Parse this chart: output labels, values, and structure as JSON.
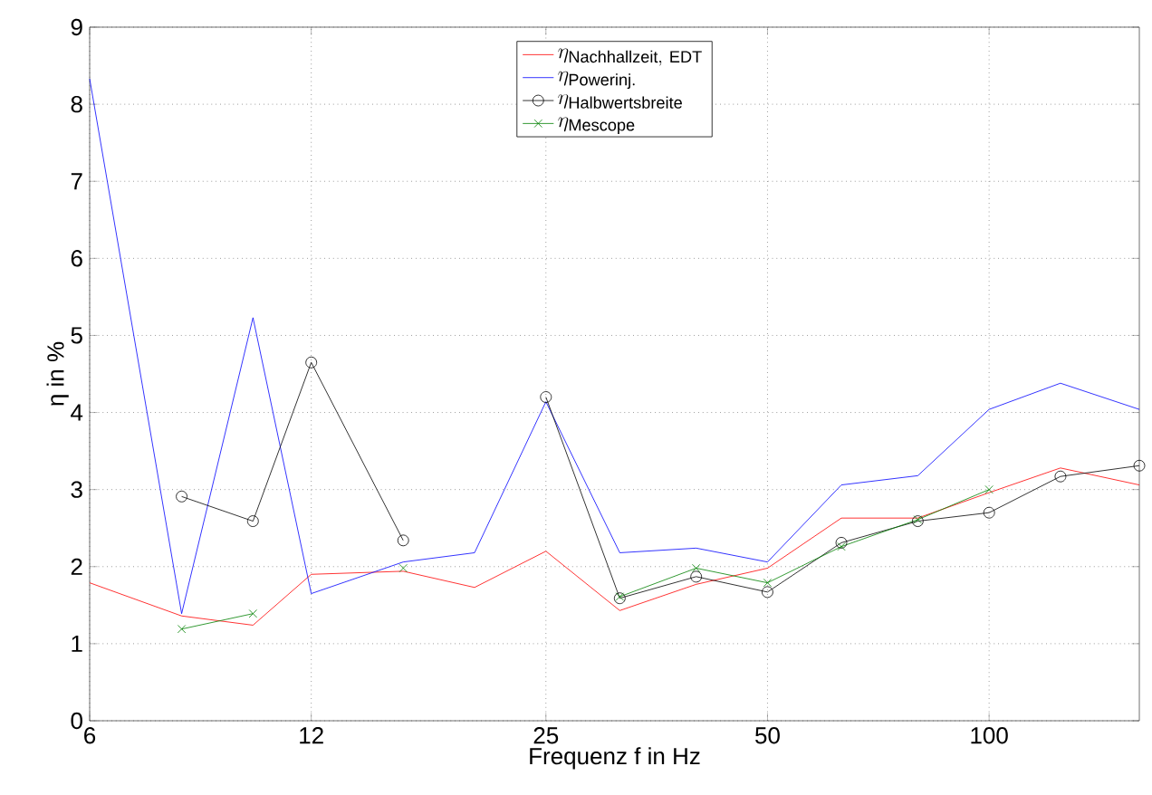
{
  "chart_data": {
    "type": "line",
    "xlabel": "Frequenz f in Hz",
    "ylabel": "η in %",
    "log": "x",
    "x": [
      6,
      8,
      10,
      12,
      16,
      20,
      25,
      31.5,
      40,
      50,
      63,
      80,
      100,
      125,
      160
    ],
    "xlim": [
      6,
      160
    ],
    "xticks": [
      6,
      12,
      25,
      50,
      100
    ],
    "ylim": [
      0,
      9
    ],
    "yticks": [
      0,
      1,
      2,
      3,
      4,
      5,
      6,
      7,
      8,
      9
    ],
    "grid": true,
    "legend": "top",
    "line_style": "solid",
    "series": [
      {
        "name": "\\eta_{\\mathrm{Nachhallzeit,\\ EDT}}",
        "color": "#ff0000",
        "marker": "none",
        "values": [
          1.79,
          1.36,
          1.24,
          1.9,
          1.94,
          1.73,
          2.2,
          1.43,
          1.77,
          1.98,
          2.63,
          2.63,
          2.96,
          3.28,
          3.06
        ]
      },
      {
        "name": "\\eta_{\\mathrm{Powerinj.}}",
        "color": "#0000ff",
        "marker": "none",
        "values": [
          8.33,
          1.39,
          5.23,
          1.65,
          2.06,
          2.18,
          4.14,
          2.18,
          2.24,
          2.06,
          3.06,
          3.18,
          4.04,
          4.38,
          4.04
        ]
      },
      {
        "name": "\\eta_{\\mathrm{Halbwertsbreite}}",
        "color": "#000000",
        "marker": "circle",
        "values": [
          null,
          2.91,
          2.59,
          4.65,
          2.34,
          null,
          4.2,
          1.59,
          1.87,
          1.67,
          2.31,
          2.59,
          2.7,
          3.17,
          3.31
        ]
      },
      {
        "name": "\\eta_{\\mathrm{Mescope}}",
        "color": "#008000",
        "marker": "cross",
        "values": [
          null,
          1.19,
          1.39,
          null,
          1.98,
          null,
          null,
          1.61,
          1.98,
          1.79,
          2.26,
          2.61,
          3.0,
          null,
          null
        ]
      }
    ]
  }
}
